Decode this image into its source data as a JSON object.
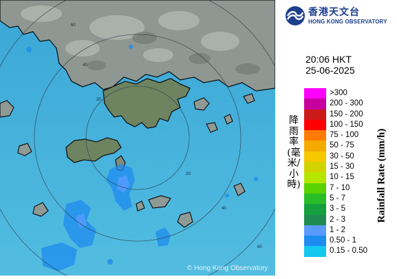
{
  "logo": {
    "chinese_name": "香港天文台",
    "english_name": "HONG KONG OBSERVATORY",
    "icon": "hko-logo-icon"
  },
  "timestamp": {
    "time": "20:06 HKT",
    "date": "25-06-2025"
  },
  "legend": {
    "title_en": "Rainfall Rate (mm/h)",
    "title_zh": "降雨率(毫米/小時)",
    "items": [
      {
        "label": ">300",
        "color": "#ff00ff"
      },
      {
        "label": "200 - 300",
        "color": "#c800a0"
      },
      {
        "label": "150 - 200",
        "color": "#cc1a1a"
      },
      {
        "label": "100 - 150",
        "color": "#ff0000"
      },
      {
        "label": "75 - 100",
        "color": "#ff7a00"
      },
      {
        "label": "50 - 75",
        "color": "#f5aa00"
      },
      {
        "label": "30 - 50",
        "color": "#f5c800"
      },
      {
        "label": "15 - 30",
        "color": "#d2d200"
      },
      {
        "label": "10 - 15",
        "color": "#b4e600"
      },
      {
        "label": "7 - 10",
        "color": "#5ad200"
      },
      {
        "label": "5 - 7",
        "color": "#28be28"
      },
      {
        "label": "3 - 5",
        "color": "#14a03c"
      },
      {
        "label": "2 - 3",
        "color": "#1e8c50"
      },
      {
        "label": "1 - 2",
        "color": "#5a9bff"
      },
      {
        "label": "0.50 - 1",
        "color": "#1e8cf0"
      },
      {
        "label": "0.15 - 0.50",
        "color": "#14c8f0"
      }
    ]
  },
  "map": {
    "copyright": "© Hong Kong Observatory",
    "ring_labels": [
      "60",
      "40",
      "20",
      "20",
      "40",
      "60"
    ],
    "colors": {
      "sea": "#4ab4dc",
      "land": "#8c9690",
      "coast": "#101418",
      "ring": "#2a3a48"
    }
  }
}
